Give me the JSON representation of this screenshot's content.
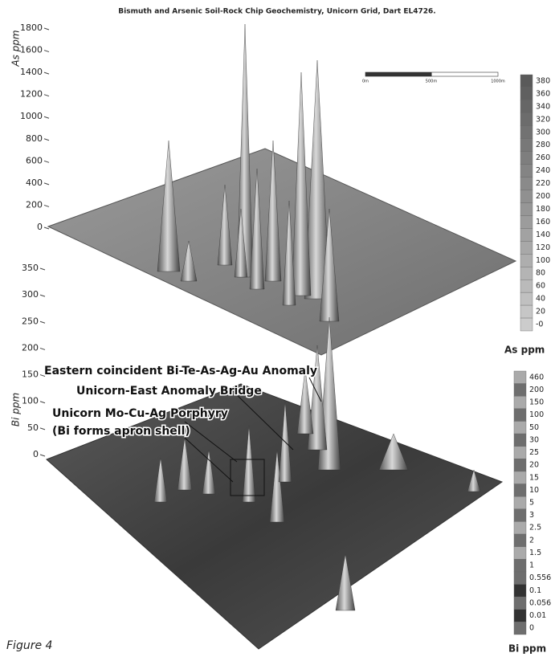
{
  "title": "Bismuth and Arsenic Soil-Rock Chip Geochemistry, Unicorn Grid, Dart EL4726.",
  "caption": "Figure 4",
  "scale_bar": [
    "0m",
    "500m",
    "1000m"
  ],
  "panels": [
    {
      "y_label": "As ppm",
      "yticks": [
        1800,
        1600,
        1400,
        1200,
        1000,
        800,
        600,
        400,
        200,
        0
      ],
      "colorbar": {
        "label": "As ppm",
        "ticks": [
          "380",
          "360",
          "340",
          "320",
          "300",
          "280",
          "260",
          "240",
          "220",
          "200",
          "180",
          "160",
          "140",
          "120",
          "100",
          "80",
          "60",
          "40",
          "20",
          "-0"
        ]
      },
      "annotations": []
    },
    {
      "y_label": "Bi ppm",
      "yticks": [
        350,
        300,
        250,
        200,
        150,
        100,
        50,
        0
      ],
      "colorbar": {
        "label": "Bi ppm",
        "ticks": [
          "460",
          "200",
          "150",
          "100",
          "50",
          "30",
          "25",
          "20",
          "15",
          "10",
          "5",
          "3",
          "2.5",
          "2",
          "1.5",
          "1",
          "0.556",
          "0.1",
          "0.056",
          "0.01",
          "0"
        ]
      },
      "annotations": [
        "Eastern coincident Bi-Te-As-Ag-Au Anomaly",
        "Unicorn-East Anomaly Bridge",
        "Unicorn Mo-Cu-Ag Porphyry",
        "(Bi forms apron shell)"
      ]
    }
  ]
}
